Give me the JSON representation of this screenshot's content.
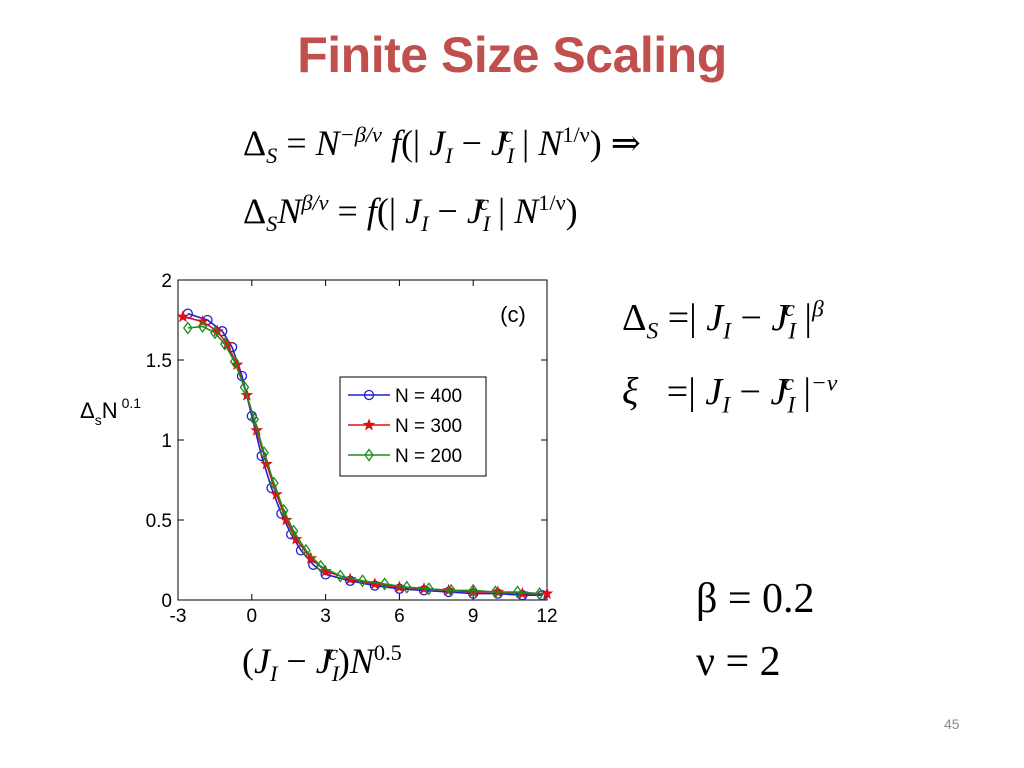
{
  "slide": {
    "title": "Finite Size Scaling",
    "page_number": "45"
  },
  "equations": {
    "line1": {
      "lhs": "Δ",
      "lhs_sub": "S",
      "eq": "=",
      "N": "N",
      "exp": "−β/ν",
      "f": "f",
      "open": "(|",
      "J1": "J",
      "J1_sub": "I",
      "minus": "−",
      "J2": "J",
      "J2_sup": "c",
      "J2_sub": "I",
      "bar": "|",
      "N2": "N",
      "exp2": "1/ν",
      "close": ")",
      "implies": "⇒"
    },
    "line2": {
      "lhs": "Δ",
      "lhs_sub": "S",
      "N": "N",
      "exp": "β/ν",
      "eq": "=",
      "f": "f",
      "open": "(|",
      "J1": "J",
      "J1_sub": "I",
      "minus": "−",
      "J2": "J",
      "J2_sup": "c",
      "J2_sub": "I",
      "bar": "|",
      "N2": "N",
      "exp2": "1/ν",
      "close": ")"
    },
    "line3": {
      "lhs": "Δ",
      "lhs_sub": "S",
      "eq": "=|",
      "J1": "J",
      "J1_sub": "I",
      "minus": "−",
      "J2": "J",
      "J2_sup": "c",
      "J2_sub": "I",
      "bar": "|",
      "exp": "β"
    },
    "line4": {
      "lhs": "ξ",
      "eq": "=|",
      "J1": "J",
      "J1_sub": "I",
      "minus": "−",
      "J2": "J",
      "J2_sup": "c",
      "J2_sub": "I",
      "bar": "|",
      "exp": "−ν"
    },
    "beta": "β = 0.2",
    "nu": "ν = 2",
    "xlabel": {
      "open": "(",
      "J1": "J",
      "J1_sub": "I",
      "minus": "−",
      "J2": "J",
      "J2_sup": "c",
      "J2_sub": "I",
      "close": ")",
      "N": "N",
      "exp": "0.5"
    }
  },
  "chart_data": {
    "type": "line",
    "panel_label": "(c)",
    "ylabel": {
      "base": "Δ",
      "sub": "s",
      "N": "N",
      "exp": "0.1"
    },
    "xlim": [
      -3,
      12
    ],
    "ylim": [
      0,
      2
    ],
    "xticks": [
      "-3",
      "0",
      "3",
      "6",
      "9",
      "12"
    ],
    "yticks": [
      "0",
      "0.5",
      "1",
      "1.5",
      "2"
    ],
    "xtick_values": [
      -3,
      0,
      3,
      6,
      9,
      12
    ],
    "ytick_values": [
      0,
      0.5,
      1,
      1.5,
      2
    ],
    "legend_position": "center",
    "series": [
      {
        "name": "N = 400",
        "color": "#1f1fd6",
        "marker": "circle",
        "x": [
          -2.6,
          -1.8,
          -1.2,
          -0.8,
          -0.4,
          0,
          0.4,
          0.8,
          1.2,
          1.6,
          2.0,
          2.5,
          3.0,
          4.0,
          5.0,
          6.0,
          7.0,
          8.0,
          9.0,
          10.0,
          11.0,
          11.8
        ],
        "y": [
          1.79,
          1.75,
          1.68,
          1.58,
          1.4,
          1.15,
          0.9,
          0.7,
          0.54,
          0.41,
          0.31,
          0.22,
          0.16,
          0.12,
          0.09,
          0.07,
          0.06,
          0.05,
          0.04,
          0.04,
          0.03,
          0.03
        ]
      },
      {
        "name": "N = 300",
        "color": "#e01010",
        "marker": "star",
        "x": [
          -2.8,
          -2.0,
          -1.4,
          -1.0,
          -0.6,
          -0.2,
          0.2,
          0.6,
          1.0,
          1.4,
          1.8,
          2.4,
          3.0,
          4.0,
          5.0,
          6.0,
          7.0,
          8.0,
          9.0,
          10.0,
          11.0,
          12.0
        ],
        "y": [
          1.77,
          1.74,
          1.68,
          1.6,
          1.47,
          1.28,
          1.06,
          0.85,
          0.66,
          0.5,
          0.38,
          0.26,
          0.18,
          0.13,
          0.1,
          0.08,
          0.07,
          0.06,
          0.05,
          0.05,
          0.04,
          0.04
        ],
        "line_x": [
          -3,
          -2,
          -1.4,
          -1,
          -0.6,
          -0.2,
          0.2,
          0.6,
          1,
          1.4,
          1.8,
          2.4,
          3,
          4,
          5,
          6,
          7,
          8,
          9,
          10,
          11,
          12
        ],
        "line_y": [
          1.78,
          1.74,
          1.68,
          1.6,
          1.47,
          1.28,
          1.06,
          0.85,
          0.66,
          0.5,
          0.38,
          0.26,
          0.18,
          0.13,
          0.1,
          0.08,
          0.07,
          0.06,
          0.05,
          0.05,
          0.04,
          0.04
        ]
      },
      {
        "name": "N = 200",
        "color": "#208a20",
        "marker": "diamond",
        "x": [
          -2.6,
          -2.0,
          -1.5,
          -1.1,
          -0.7,
          -0.3,
          0.1,
          0.5,
          0.9,
          1.3,
          1.7,
          2.2,
          2.8,
          3.6,
          4.5,
          5.4,
          6.3,
          7.2,
          8.1,
          9.0,
          9.9,
          10.8,
          11.7
        ],
        "y": [
          1.7,
          1.71,
          1.67,
          1.6,
          1.49,
          1.33,
          1.13,
          0.92,
          0.73,
          0.56,
          0.43,
          0.31,
          0.21,
          0.15,
          0.12,
          0.1,
          0.08,
          0.07,
          0.06,
          0.06,
          0.05,
          0.05,
          0.04
        ]
      }
    ]
  }
}
